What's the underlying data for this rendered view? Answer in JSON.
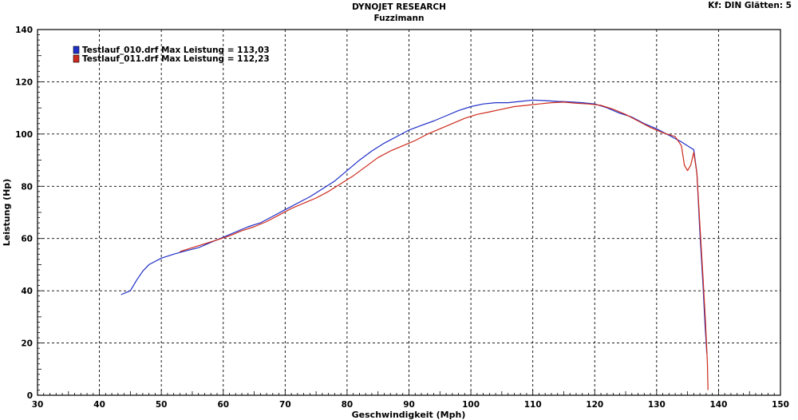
{
  "header": {
    "title": "DYNOJET RESEARCH",
    "subtitle": "Fuzzimann",
    "settings": "Kf: DIN  Glätten: 5"
  },
  "chart_data": {
    "type": "line",
    "xlabel": "Geschwindigkeit (Mph)",
    "ylabel": "Leistung (Hp)",
    "xlim": [
      30,
      150
    ],
    "ylim": [
      0,
      140
    ],
    "xticks": [
      30,
      40,
      50,
      60,
      70,
      80,
      90,
      100,
      110,
      120,
      130,
      140,
      150
    ],
    "yticks": [
      0,
      20,
      40,
      60,
      80,
      100,
      120,
      140
    ],
    "grid": true,
    "legend_position": "top-left",
    "series": [
      {
        "name": "Testlauf_010.drf Max Leistung = 113,03",
        "color": "#1f2fc8",
        "x": [
          43.5,
          45,
          46,
          47,
          48,
          50,
          52,
          54,
          56,
          58,
          60,
          62,
          64,
          66,
          68,
          70,
          72,
          74,
          76,
          78,
          80,
          82,
          84,
          86,
          88,
          90,
          92,
          94,
          96,
          98,
          100,
          102,
          104,
          106,
          108,
          110,
          112,
          114,
          116,
          118,
          120,
          122,
          124,
          126,
          128,
          130,
          132,
          134,
          135,
          136,
          136.5,
          137,
          137.5,
          137.8,
          138.1
        ],
        "values": [
          38.5,
          40,
          44,
          47.5,
          50,
          52.5,
          54,
          55.3,
          56.5,
          58.5,
          60.5,
          62.5,
          64.5,
          66,
          68.5,
          71,
          73.5,
          76,
          79,
          82,
          86,
          90,
          93.5,
          96.5,
          99,
          101.5,
          103.3,
          105,
          107,
          109,
          110.5,
          111.5,
          112,
          112,
          112.5,
          113,
          112.8,
          112.5,
          112.3,
          112,
          111.5,
          110,
          108,
          106.5,
          104,
          102,
          99.5,
          97,
          95.5,
          94,
          85,
          62,
          42,
          28,
          16
        ]
      },
      {
        "name": "Testlauf_011.drf Max Leistung = 112,23",
        "color": "#cc2a1c",
        "x": [
          53,
          55,
          57,
          59,
          61,
          63,
          65,
          67,
          69,
          71,
          73,
          75,
          77,
          79,
          81,
          83,
          85,
          87,
          89,
          91,
          93,
          95,
          97,
          99,
          101,
          103,
          105,
          107,
          109,
          111,
          113,
          115,
          117,
          119,
          121,
          123,
          125,
          127,
          129,
          131,
          133,
          134,
          134.5,
          135,
          135.5,
          136,
          136.5,
          137,
          137.5,
          137.9,
          138.2,
          138.3
        ],
        "values": [
          55,
          56.5,
          58,
          59.5,
          61,
          63,
          64.5,
          66.5,
          69,
          71.5,
          73.5,
          75.5,
          78,
          81,
          84,
          87.5,
          91,
          93.5,
          95.5,
          97.5,
          100,
          102,
          104,
          106,
          107.5,
          108.5,
          109.5,
          110.5,
          111,
          111.5,
          112,
          112.2,
          111.8,
          111.5,
          111,
          109.5,
          107.5,
          105,
          102.5,
          100.5,
          99,
          95.5,
          88,
          86,
          88,
          93,
          85,
          65,
          45,
          28,
          12,
          2
        ]
      }
    ]
  }
}
